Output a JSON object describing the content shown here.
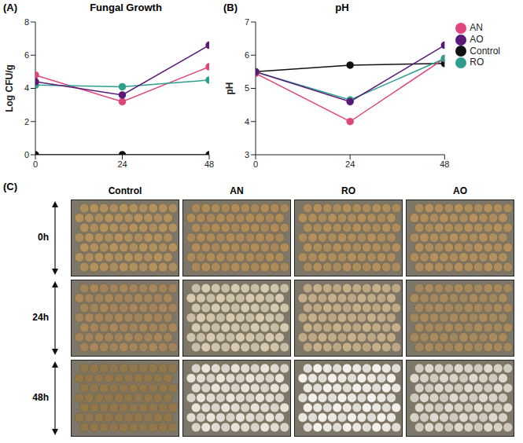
{
  "chart_data": [
    {
      "type": "line",
      "label": "(A)",
      "title": "Fungal Growth",
      "y_label": "Log CFU/g",
      "x": [
        0,
        24,
        48
      ],
      "xlim": [
        0,
        48
      ],
      "xticks": [
        0,
        24,
        48
      ],
      "ylim": [
        0,
        8
      ],
      "yticks": [
        0,
        2,
        4,
        6,
        8
      ],
      "grid": false,
      "marker": "circle",
      "series": [
        {
          "name": "Control",
          "color": "#111111",
          "values": [
            0,
            0,
            0
          ]
        },
        {
          "name": "AN",
          "color": "#e0457b",
          "values": [
            4.8,
            3.2,
            5.3
          ]
        },
        {
          "name": "RO",
          "color": "#2f9e8c",
          "values": [
            4.2,
            4.1,
            4.5
          ]
        },
        {
          "name": "AO",
          "color": "#5a1a78",
          "values": [
            4.4,
            3.6,
            6.6
          ]
        }
      ]
    },
    {
      "type": "line",
      "label": "(B)",
      "title": "pH",
      "y_label": "pH",
      "x": [
        0,
        24,
        48
      ],
      "xlim": [
        0,
        48
      ],
      "xticks": [
        0,
        24,
        48
      ],
      "ylim": [
        3,
        7
      ],
      "yticks": [
        3,
        4,
        5,
        6,
        7
      ],
      "grid": false,
      "marker": "circle",
      "legend": "right",
      "series": [
        {
          "name": "Control",
          "color": "#111111",
          "values": [
            5.5,
            5.7,
            5.75
          ]
        },
        {
          "name": "AN",
          "color": "#e0457b",
          "values": [
            5.45,
            4.0,
            5.9
          ]
        },
        {
          "name": "RO",
          "color": "#2f9e8c",
          "values": [
            5.5,
            4.65,
            5.9
          ]
        },
        {
          "name": "AO",
          "color": "#5a1a78",
          "values": [
            5.5,
            4.6,
            6.3
          ]
        }
      ]
    }
  ],
  "image_grid": {
    "label": "(C)",
    "columns": [
      "Control",
      "AN",
      "RO",
      "AO"
    ],
    "rows": [
      "0h",
      "24h",
      "48h"
    ]
  }
}
